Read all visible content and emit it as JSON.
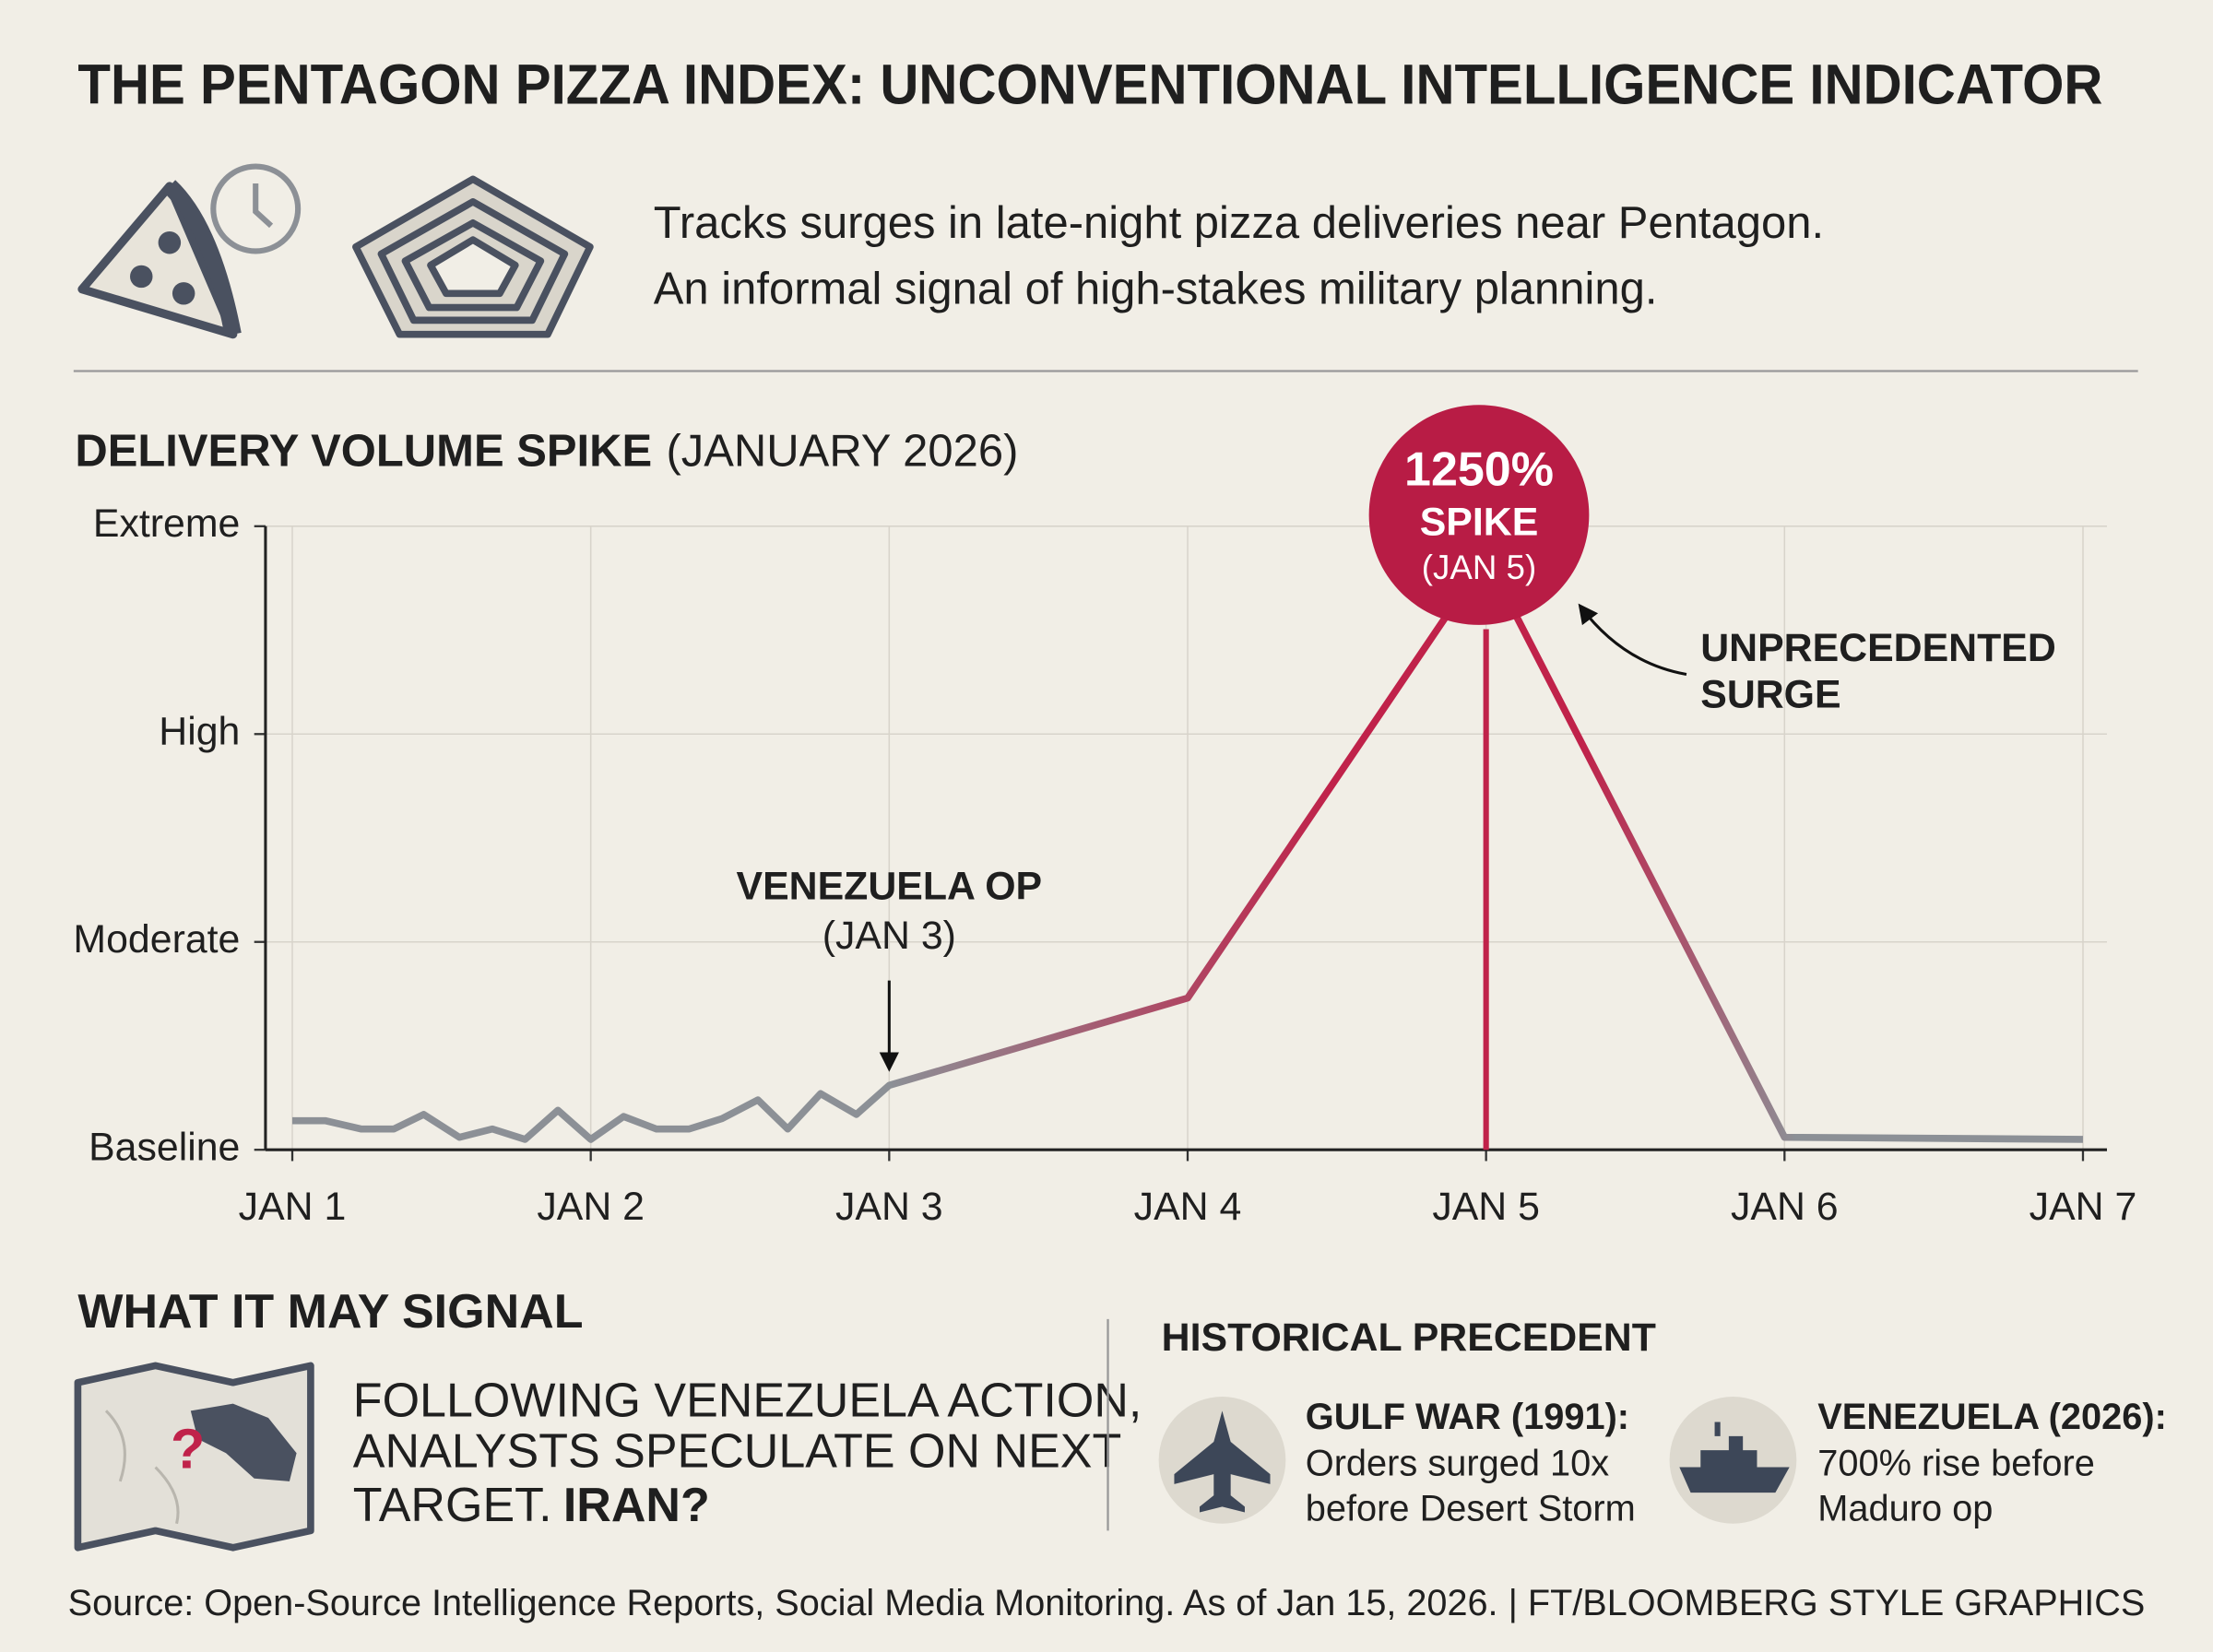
{
  "header": {
    "title": "THE PENTAGON PIZZA INDEX: UNCONVENTIONAL INTELLIGENCE INDICATOR",
    "description": [
      "Tracks surges in late-night pizza deliveries near Pentagon.",
      "An informal signal of high-stakes military planning."
    ]
  },
  "chart_data": {
    "type": "line",
    "title": "DELIVERY VOLUME SPIKE",
    "subtitle": "(JANUARY 2026)",
    "x": [
      1,
      1.11,
      1.23,
      1.34,
      1.44,
      1.56,
      1.67,
      1.78,
      1.89,
      2,
      2.11,
      2.22,
      2.33,
      2.44,
      2.56,
      2.66,
      2.77,
      2.89,
      3,
      4,
      5,
      6,
      7
    ],
    "values": [
      0.14,
      0.14,
      0.1,
      0.1,
      0.17,
      0.06,
      0.1,
      0.05,
      0.19,
      0.05,
      0.16,
      0.1,
      0.1,
      0.15,
      0.24,
      0.1,
      0.27,
      0.17,
      0.31,
      0.73,
      2.85,
      0.06,
      0.05
    ],
    "colors": [
      "#8c9096",
      "#c0224a"
    ],
    "xlim": [
      1,
      7
    ],
    "xticks": [
      {
        "value": 1,
        "label": "JAN 1"
      },
      {
        "value": 2,
        "label": "JAN 2"
      },
      {
        "value": 3,
        "label": "JAN 3"
      },
      {
        "value": 4,
        "label": "JAN 4"
      },
      {
        "value": 5,
        "label": "JAN 5"
      },
      {
        "value": 6,
        "label": "JAN 6"
      },
      {
        "value": 7,
        "label": "JAN 7"
      }
    ],
    "ylim": [
      0,
      3
    ],
    "yticks": [
      {
        "value": 0,
        "label": "Baseline"
      },
      {
        "value": 1,
        "label": "Moderate"
      },
      {
        "value": 2,
        "label": "High"
      },
      {
        "value": 3,
        "label": "Extreme"
      }
    ],
    "grid": true,
    "annotations": {
      "event": [
        "VENEZUELA OP",
        "(JAN 3)"
      ],
      "spike": [
        "1250%",
        "SPIKE",
        "(JAN 5)"
      ],
      "surge": [
        "UNPRECEDENTED",
        "SURGE"
      ]
    }
  },
  "signal": {
    "title": "WHAT IT MAY SIGNAL",
    "lines": [
      "FOLLOWING VENEZUELA ACTION,",
      "ANALYSTS SPECULATE ON NEXT",
      "TARGET."
    ],
    "emphasis": "IRAN?"
  },
  "precedent": {
    "title": "HISTORICAL PRECEDENT",
    "items": [
      {
        "label": "GULF WAR (1991):",
        "lines": [
          "Orders surged 10x",
          "before Desert Storm"
        ]
      },
      {
        "label": "VENEZUELA (2026):",
        "lines": [
          "700% rise before",
          "Maduro op"
        ]
      }
    ]
  },
  "source": "Source: Open-Source Intelligence Reports, Social Media Monitoring. As of Jan 15, 2026. | FT/BLOOMBERG STYLE GRAPHICS"
}
